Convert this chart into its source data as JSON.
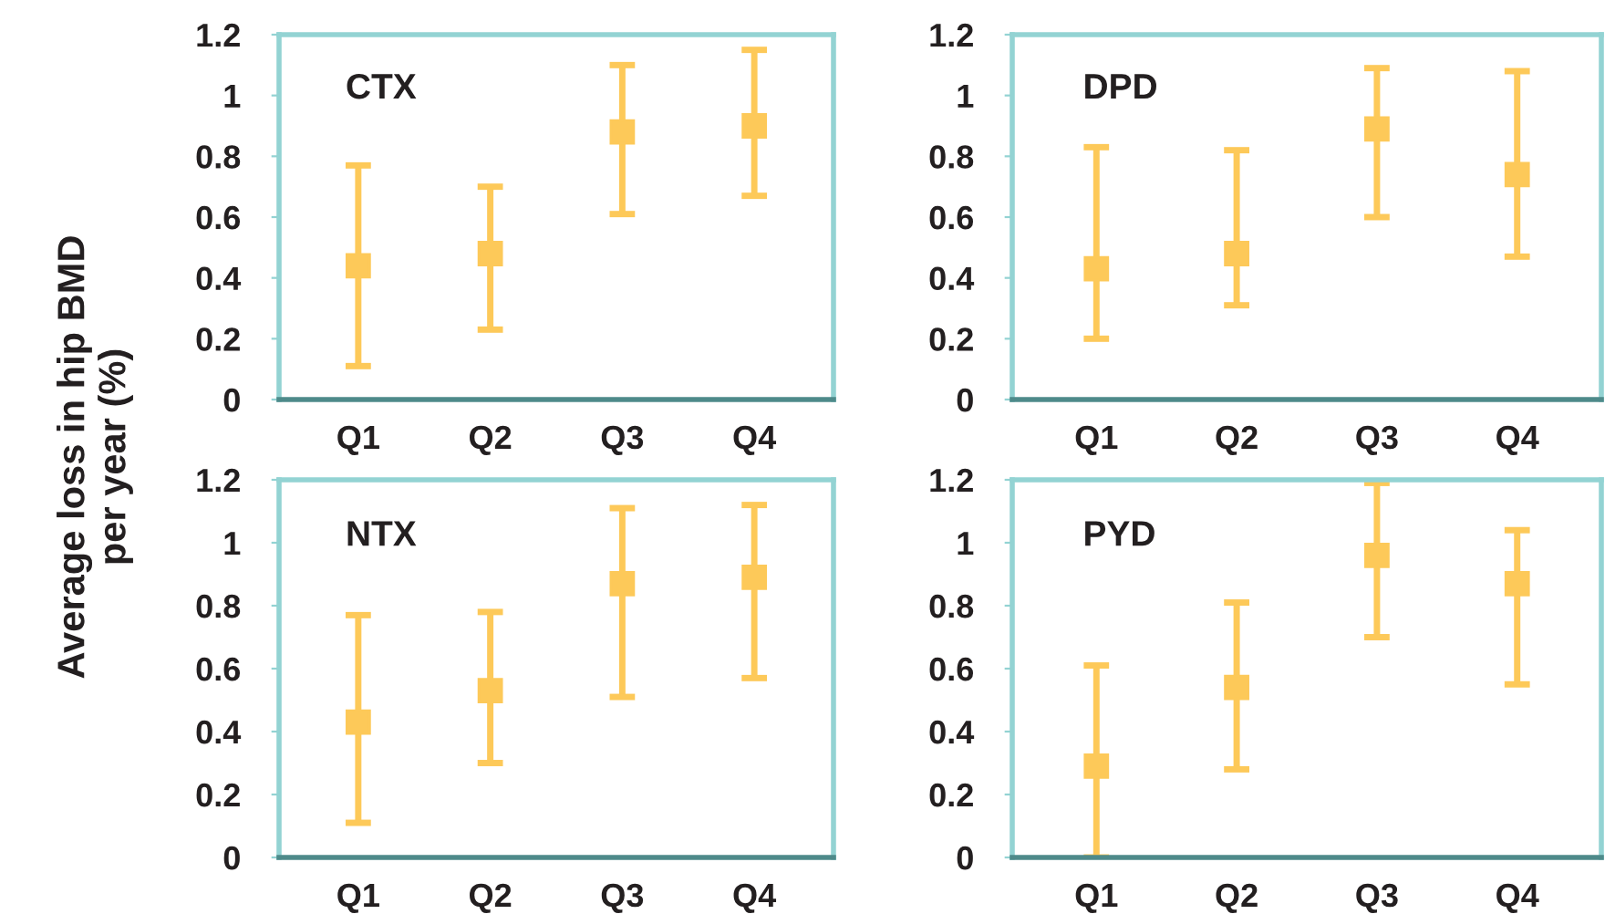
{
  "chart_data": [
    {
      "type": "scatter",
      "title": "CTX",
      "ylabel": "Average loss in hip BMD\nper year (%)",
      "categories": [
        "Q1",
        "Q2",
        "Q3",
        "Q4"
      ],
      "marker": "square",
      "grid": false,
      "legend": false,
      "series": [
        {
          "color": "#fdc959",
          "values": [
            0.44,
            0.48,
            0.88,
            0.9
          ],
          "errors": [
            [
              0.11,
              0.77
            ],
            [
              0.23,
              0.7
            ],
            [
              0.61,
              1.1
            ],
            [
              0.67,
              1.15
            ]
          ]
        }
      ],
      "ylim": [
        0,
        1.2
      ],
      "yticks": [
        0,
        0.2,
        0.4,
        0.6,
        0.8,
        1,
        1.2
      ]
    },
    {
      "type": "scatter",
      "title": "DPD",
      "categories": [
        "Q1",
        "Q2",
        "Q3",
        "Q4"
      ],
      "marker": "square",
      "grid": false,
      "legend": false,
      "series": [
        {
          "color": "#fdc959",
          "values": [
            0.43,
            0.48,
            0.89,
            0.74
          ],
          "errors": [
            [
              0.2,
              0.83
            ],
            [
              0.31,
              0.82
            ],
            [
              0.6,
              1.09
            ],
            [
              0.47,
              1.08
            ]
          ]
        }
      ],
      "ylim": [
        0,
        1.2
      ],
      "yticks": [
        0,
        0.2,
        0.4,
        0.6,
        0.8,
        1,
        1.2
      ]
    },
    {
      "type": "scatter",
      "title": "NTX",
      "categories": [
        "Q1",
        "Q2",
        "Q3",
        "Q4"
      ],
      "marker": "square",
      "grid": false,
      "legend": false,
      "series": [
        {
          "color": "#fdc959",
          "values": [
            0.43,
            0.53,
            0.87,
            0.89
          ],
          "errors": [
            [
              0.11,
              0.77
            ],
            [
              0.3,
              0.78
            ],
            [
              0.51,
              1.11
            ],
            [
              0.57,
              1.12
            ]
          ]
        }
      ],
      "ylim": [
        0,
        1.2
      ],
      "yticks": [
        0,
        0.2,
        0.4,
        0.6,
        0.8,
        1,
        1.2
      ]
    },
    {
      "type": "scatter",
      "title": "PYD",
      "categories": [
        "Q1",
        "Q2",
        "Q3",
        "Q4"
      ],
      "marker": "square",
      "grid": false,
      "legend": false,
      "series": [
        {
          "color": "#fdc959",
          "values": [
            0.29,
            0.54,
            0.96,
            0.87
          ],
          "errors": [
            [
              0,
              0.61
            ],
            [
              0.28,
              0.81
            ],
            [
              0.7,
              1.19
            ],
            [
              0.55,
              1.04
            ]
          ]
        }
      ],
      "ylim": [
        0,
        1.2
      ],
      "yticks": [
        0,
        0.2,
        0.4,
        0.6,
        0.8,
        1,
        1.2
      ]
    }
  ]
}
